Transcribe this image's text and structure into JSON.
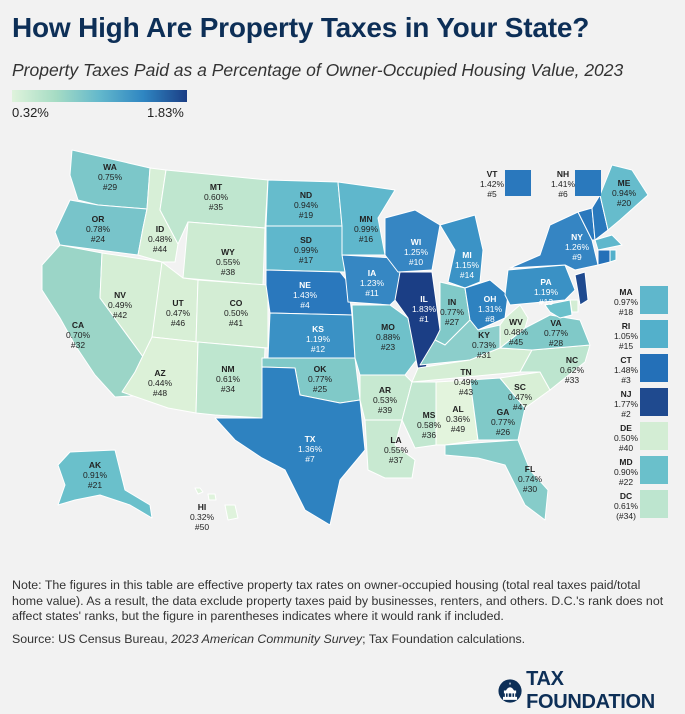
{
  "title": "How High Are Property Taxes in Your State?",
  "subtitle": "Property Taxes Paid as a Percentage of Owner-Occupied Housing Value, 2023",
  "legend": {
    "min": "0.32%",
    "max": "1.83%"
  },
  "colors": {
    "low": "#dff3dc",
    "mid": "#63b8cc",
    "high": "#1b3e85",
    "title": "#0d2f57"
  },
  "states": [
    {
      "abbr": "WA",
      "rate": "0.75%",
      "rank": "#29"
    },
    {
      "abbr": "OR",
      "rate": "0.78%",
      "rank": "#24"
    },
    {
      "abbr": "CA",
      "rate": "0.70%",
      "rank": "#32"
    },
    {
      "abbr": "NV",
      "rate": "0.49%",
      "rank": "#42"
    },
    {
      "abbr": "ID",
      "rate": "0.48%",
      "rank": "#44"
    },
    {
      "abbr": "MT",
      "rate": "0.60%",
      "rank": "#35"
    },
    {
      "abbr": "WY",
      "rate": "0.55%",
      "rank": "#38"
    },
    {
      "abbr": "UT",
      "rate": "0.47%",
      "rank": "#46"
    },
    {
      "abbr": "AZ",
      "rate": "0.44%",
      "rank": "#48"
    },
    {
      "abbr": "CO",
      "rate": "0.50%",
      "rank": "#41"
    },
    {
      "abbr": "NM",
      "rate": "0.61%",
      "rank": "#34"
    },
    {
      "abbr": "ND",
      "rate": "0.94%",
      "rank": "#19"
    },
    {
      "abbr": "SD",
      "rate": "0.99%",
      "rank": "#17"
    },
    {
      "abbr": "NE",
      "rate": "1.43%",
      "rank": "#4"
    },
    {
      "abbr": "KS",
      "rate": "1.19%",
      "rank": "#12"
    },
    {
      "abbr": "OK",
      "rate": "0.77%",
      "rank": "#25"
    },
    {
      "abbr": "TX",
      "rate": "1.36%",
      "rank": "#7"
    },
    {
      "abbr": "MN",
      "rate": "0.99%",
      "rank": "#16"
    },
    {
      "abbr": "IA",
      "rate": "1.23%",
      "rank": "#11"
    },
    {
      "abbr": "MO",
      "rate": "0.88%",
      "rank": "#23"
    },
    {
      "abbr": "AR",
      "rate": "0.53%",
      "rank": "#39"
    },
    {
      "abbr": "LA",
      "rate": "0.55%",
      "rank": "#37"
    },
    {
      "abbr": "WI",
      "rate": "1.25%",
      "rank": "#10"
    },
    {
      "abbr": "IL",
      "rate": "1.83%",
      "rank": "#1"
    },
    {
      "abbr": "MI",
      "rate": "1.15%",
      "rank": "#14"
    },
    {
      "abbr": "IN",
      "rate": "0.77%",
      "rank": "#27"
    },
    {
      "abbr": "OH",
      "rate": "1.31%",
      "rank": "#8"
    },
    {
      "abbr": "KY",
      "rate": "0.73%",
      "rank": "#31"
    },
    {
      "abbr": "TN",
      "rate": "0.49%",
      "rank": "#43"
    },
    {
      "abbr": "MS",
      "rate": "0.58%",
      "rank": "#36"
    },
    {
      "abbr": "AL",
      "rate": "0.36%",
      "rank": "#49"
    },
    {
      "abbr": "GA",
      "rate": "0.77%",
      "rank": "#26"
    },
    {
      "abbr": "FL",
      "rate": "0.74%",
      "rank": "#30"
    },
    {
      "abbr": "SC",
      "rate": "0.47%",
      "rank": "#47"
    },
    {
      "abbr": "NC",
      "rate": "0.62%",
      "rank": "#33"
    },
    {
      "abbr": "VA",
      "rate": "0.77%",
      "rank": "#28"
    },
    {
      "abbr": "WV",
      "rate": "0.48%",
      "rank": "#45"
    },
    {
      "abbr": "PA",
      "rate": "1.19%",
      "rank": "#13"
    },
    {
      "abbr": "NY",
      "rate": "1.26%",
      "rank": "#9"
    },
    {
      "abbr": "ME",
      "rate": "0.94%",
      "rank": "#20"
    },
    {
      "abbr": "AK",
      "rate": "0.91%",
      "rank": "#21"
    },
    {
      "abbr": "HI",
      "rate": "0.32%",
      "rank": "#50"
    },
    {
      "abbr": "VT",
      "rate": "1.42%",
      "rank": "#5"
    },
    {
      "abbr": "NH",
      "rate": "1.41%",
      "rank": "#6"
    }
  ],
  "sidebar": [
    {
      "abbr": "MA",
      "rate": "0.97%",
      "rank": "#18"
    },
    {
      "abbr": "RI",
      "rate": "1.05%",
      "rank": "#15"
    },
    {
      "abbr": "CT",
      "rate": "1.48%",
      "rank": "#3"
    },
    {
      "abbr": "NJ",
      "rate": "1.77%",
      "rank": "#2"
    },
    {
      "abbr": "DE",
      "rate": "0.50%",
      "rank": "#40"
    },
    {
      "abbr": "MD",
      "rate": "0.90%",
      "rank": "#22"
    },
    {
      "abbr": "DC",
      "rate": "0.61%",
      "rank": "(#34)"
    }
  ],
  "note": "Note: The figures in this table are effective property tax rates on owner-occupied housing (total real taxes paid/total home value). As a result, the data exclude property taxes paid by businesses, renters, and others. D.C.'s rank does not affect states' ranks, but the figure in parentheses indicates where it would rank if included.",
  "source_prefix": "Source: US Census Bureau, ",
  "source_italic": "2023 American Community Survey",
  "source_suffix": "; Tax Foundation calculations.",
  "brand": "TAX FOUNDATION"
}
